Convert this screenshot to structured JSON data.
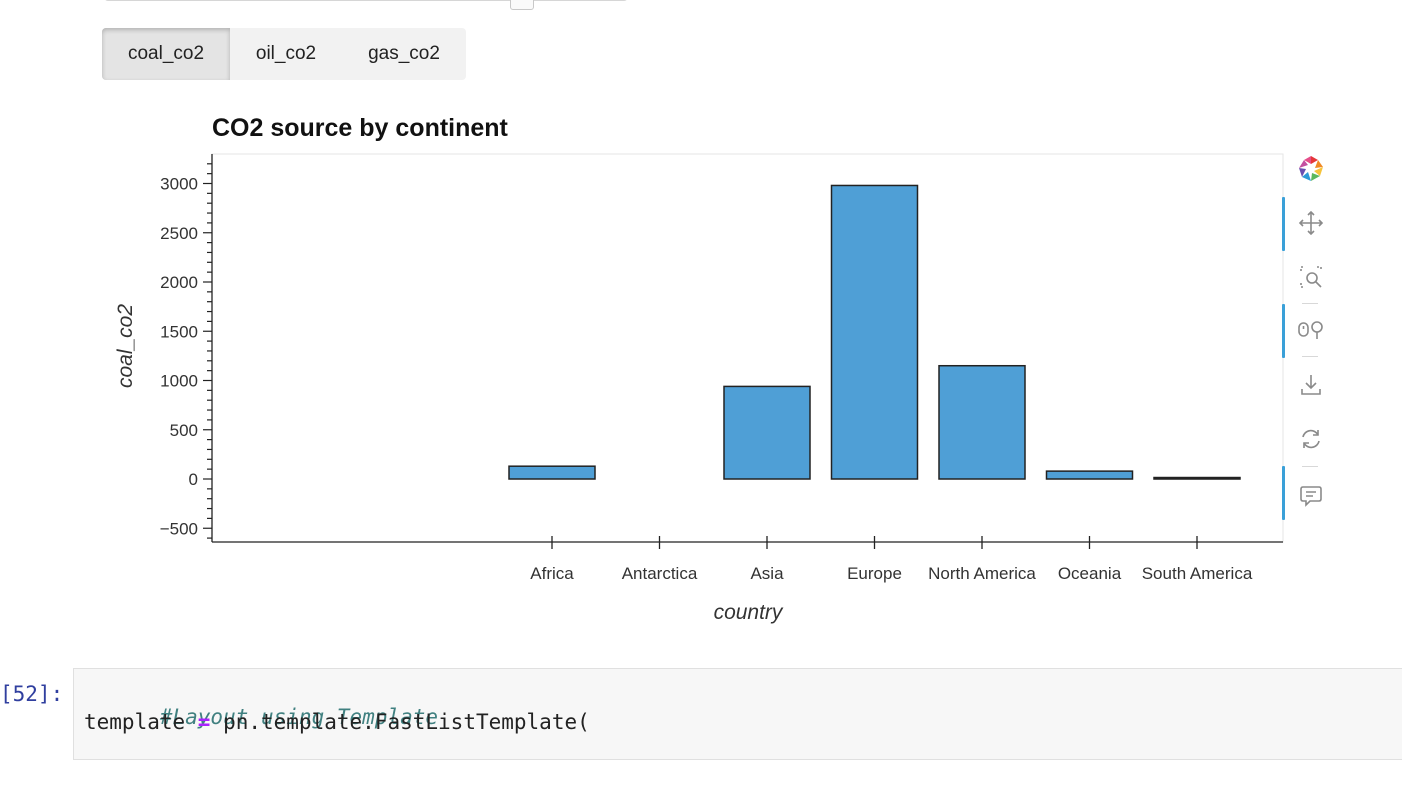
{
  "tabs": [
    {
      "label": "coal_co2",
      "active": true
    },
    {
      "label": "oil_co2",
      "active": false
    },
    {
      "label": "gas_co2",
      "active": false
    }
  ],
  "chart_data": {
    "type": "bar",
    "title": "CO2 source by continent",
    "xlabel": "country",
    "ylabel": "coal_co2",
    "categories": [
      "Africa",
      "Antarctica",
      "Asia",
      "Europe",
      "North America",
      "Oceania",
      "South America"
    ],
    "values": [
      130,
      0,
      940,
      2980,
      1150,
      80,
      15
    ],
    "ylim": [
      -500,
      3000
    ],
    "y_ticks": [
      -500,
      0,
      500,
      1000,
      1500,
      2000,
      2500,
      3000
    ],
    "y_tick_labels": [
      "−500",
      "0",
      "500",
      "1000",
      "1500",
      "2000",
      "2500",
      "3000"
    ],
    "bar_color": "#4f9fd6",
    "grid": false
  },
  "toolbar": {
    "tools": [
      "bokeh-logo-icon",
      "pan-icon",
      "box-zoom-icon",
      "wheel-zoom-icon",
      "save-icon",
      "reset-icon",
      "hover-icon"
    ]
  },
  "code_cell": {
    "prompt": "[52]:",
    "line1_comment": "#Layout using Template",
    "line2_var": "template ",
    "line2_op": "=",
    "line2_rest": " pn.template.FastListTemplate("
  }
}
